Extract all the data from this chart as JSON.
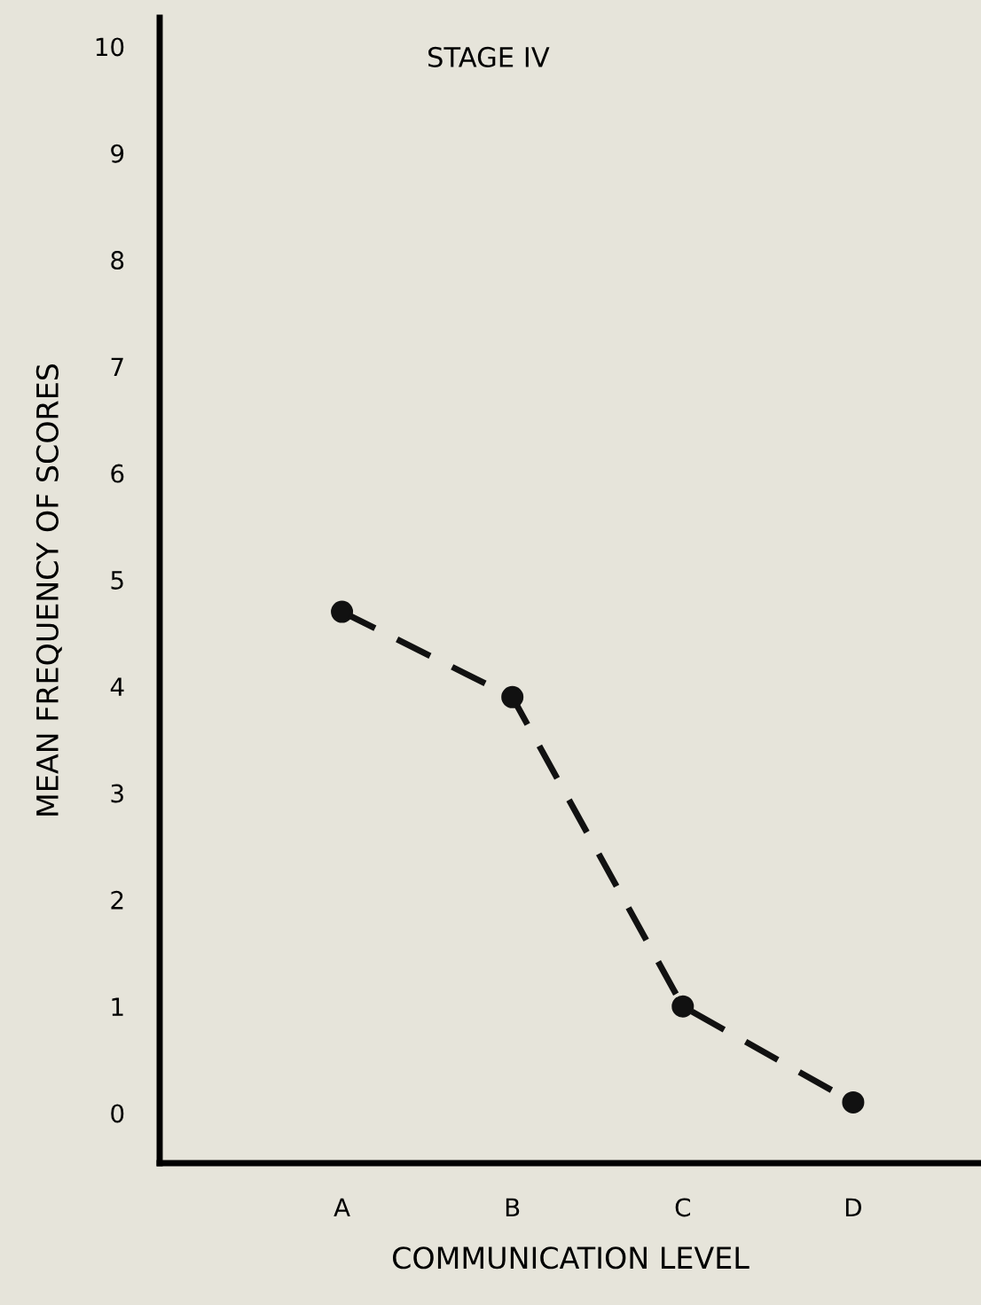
{
  "chart_data": {
    "type": "line",
    "title": "STAGE IV",
    "xlabel": "COMMUNICATION LEVEL",
    "ylabel": "MEAN FREQUENCY OF SCORES",
    "categories": [
      "A",
      "B",
      "C",
      "D"
    ],
    "series": [
      {
        "color": "#111111",
        "values": [
          4.7,
          3.9,
          1.0,
          0.1
        ]
      }
    ],
    "ylim": [
      -0.47,
      10.27
    ],
    "yticks": [
      0,
      1,
      2,
      3,
      4,
      5,
      6,
      7,
      8,
      9,
      10
    ],
    "marker": "circle",
    "line_style": "dashed",
    "grid": false,
    "legend": false
  }
}
